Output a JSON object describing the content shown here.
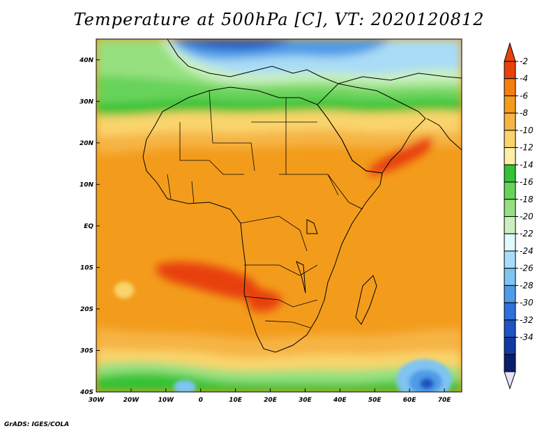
{
  "title": "Temperature at 500hPa [C], VT: 2020120812",
  "credit": "GrADS: IGES/COLA",
  "map": {
    "lon_range": [
      -30,
      75
    ],
    "lat_range": [
      -40,
      45
    ],
    "lat_ticks": [
      {
        "value": 40,
        "label": "40N"
      },
      {
        "value": 30,
        "label": "30N"
      },
      {
        "value": 20,
        "label": "20N"
      },
      {
        "value": 10,
        "label": "10N"
      },
      {
        "value": 0,
        "label": "EQ"
      },
      {
        "value": -10,
        "label": "10S"
      },
      {
        "value": -20,
        "label": "20S"
      },
      {
        "value": -30,
        "label": "30S"
      },
      {
        "value": -40,
        "label": "40S"
      }
    ],
    "lon_ticks": [
      {
        "value": -30,
        "label": "30W"
      },
      {
        "value": -20,
        "label": "20W"
      },
      {
        "value": -10,
        "label": "10W"
      },
      {
        "value": 0,
        "label": "0"
      },
      {
        "value": 10,
        "label": "10E"
      },
      {
        "value": 20,
        "label": "20E"
      },
      {
        "value": 30,
        "label": "30E"
      },
      {
        "value": 40,
        "label": "40E"
      },
      {
        "value": 50,
        "label": "50E"
      },
      {
        "value": 60,
        "label": "60E"
      },
      {
        "value": 70,
        "label": "70E"
      }
    ]
  },
  "colorbar": {
    "levels": [
      "-2",
      "-4",
      "-6",
      "-8",
      "-10",
      "-12",
      "-14",
      "-16",
      "-18",
      "-20",
      "-22",
      "-24",
      "-26",
      "-28",
      "-30",
      "-32",
      "-34"
    ],
    "colors": [
      "#e8410b",
      "#f4800f",
      "#f39c1c",
      "#f6b444",
      "#f9d46c",
      "#fdf0a6",
      "#35c236",
      "#68d35a",
      "#96e080",
      "#c9f0c0",
      "#e0fafd",
      "#a9dcf6",
      "#7fc4f2",
      "#4f9be8",
      "#3070db",
      "#1f52c2",
      "#133aa3",
      "#0d1d6e"
    ],
    "top_cap_color": "#e8410b",
    "bottom_cap_color": "#e8e4f8"
  },
  "chart_data": {
    "type": "heatmap",
    "variable": "Temperature at 500hPa",
    "units": "C",
    "valid_time": "2020120812",
    "value_range": [
      -34,
      -2
    ],
    "approx_zonal_bands": [
      {
        "lat_range": [
          38,
          45
        ],
        "value_c": -22
      },
      {
        "lat_range": [
          33,
          38
        ],
        "value_c": -17
      },
      {
        "lat_range": [
          27,
          33
        ],
        "value_c": -14
      },
      {
        "lat_range": [
          22,
          27
        ],
        "value_c": -10
      },
      {
        "lat_range": [
          15,
          22
        ],
        "value_c": -8
      },
      {
        "lat_range": [
          -28,
          15
        ],
        "value_c": -6
      },
      {
        "lat_range": [
          -34,
          -28
        ],
        "value_c": -10
      },
      {
        "lat_range": [
          -40,
          -34
        ],
        "value_c": -14
      }
    ],
    "notable_features": [
      {
        "lon": 45,
        "lat": 10,
        "value_c": -4
      },
      {
        "lon": 15,
        "lat": -15,
        "value_c": -4
      },
      {
        "lon": 63,
        "lat": -38,
        "value_c": -24
      },
      {
        "lon": 0,
        "lat": 42,
        "value_c": -30
      }
    ]
  }
}
